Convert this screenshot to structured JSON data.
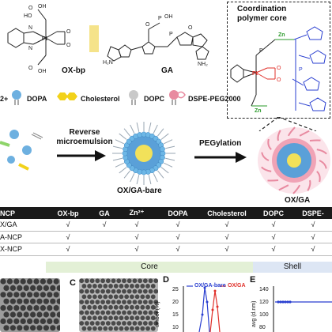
{
  "molecules": {
    "oxbp_label": "OX-bp",
    "ga_label": "GA"
  },
  "core_box": {
    "title_line1": "Coordination",
    "title_line2": "polymer core"
  },
  "legend": {
    "prefix": "2+",
    "items": [
      "DOPA",
      "Cholesterol",
      "DOPC",
      "DSPE-PEG2000"
    ]
  },
  "process": {
    "step1_line1": "Reverse",
    "step1_line2": "microemulsion",
    "product1": "OX/GA-bare",
    "step2": "PEGylation",
    "product2": "OX/GA"
  },
  "table": {
    "headers": [
      "NCP",
      "OX-bp",
      "GA",
      "Zn²⁺",
      "DOPA",
      "Cholesterol",
      "DOPC",
      "DSPE-"
    ],
    "rows": [
      [
        "X/GA",
        "√",
        "√",
        "√",
        "√",
        "√",
        "√",
        "√"
      ],
      [
        "A-NCP",
        "√",
        "",
        "√",
        "√",
        "√",
        "√",
        "√"
      ],
      [
        "X-NCP",
        "√",
        "",
        "√",
        "√",
        "√",
        "√",
        "√"
      ]
    ],
    "band_core": "Core",
    "band_shell": "Shell"
  },
  "panels": {
    "c_letter": "C",
    "d_letter": "D",
    "e_letter": "E",
    "d_legend_1": "OX/GA-bare",
    "d_legend_2": "OX/GA",
    "d_ylabel": "umber (%)",
    "d_yticks": [
      "25",
      "20",
      "15",
      "10"
    ],
    "e_ylabel": "avg (d.nm)",
    "e_yticks": [
      "140",
      "120",
      "100",
      "80"
    ]
  },
  "colors": {
    "core_blue": "#5aa0d8",
    "core_yellow": "#f2e15a",
    "shell_pink": "#e88aa0",
    "accent_red": "#e0302a",
    "accent_blue": "#2a3fd0",
    "zn_green": "#2a9a2a",
    "band_core": "#e3f0d6",
    "band_shell": "#dde6f4"
  }
}
